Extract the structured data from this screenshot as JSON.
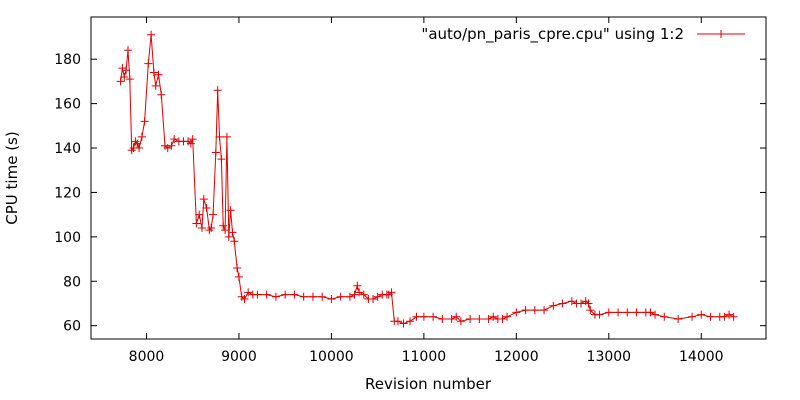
{
  "chart_data": {
    "type": "line",
    "xlabel": "Revision number",
    "ylabel": "CPU time (s)",
    "xlim": [
      7400,
      14700
    ],
    "ylim": [
      54,
      199
    ],
    "x_ticks": [
      8000,
      9000,
      10000,
      11000,
      12000,
      13000,
      14000
    ],
    "y_ticks": [
      60,
      80,
      100,
      120,
      140,
      160,
      180
    ],
    "grid": false,
    "legend_position": "top-right",
    "colors": {
      "series": "#e00000",
      "axis": "#000000"
    },
    "series": [
      {
        "name": "\"auto/pn_paris_cpre.cpu\" using 1:2",
        "marker": "plus",
        "x": [
          7720,
          7740,
          7760,
          7780,
          7800,
          7820,
          7840,
          7860,
          7880,
          7900,
          7920,
          7950,
          7980,
          8020,
          8050,
          8080,
          8100,
          8130,
          8160,
          8200,
          8230,
          8270,
          8300,
          8350,
          8400,
          8450,
          8480,
          8500,
          8540,
          8570,
          8600,
          8620,
          8650,
          8680,
          8700,
          8720,
          8750,
          8770,
          8790,
          8810,
          8830,
          8850,
          8870,
          8890,
          8910,
          8930,
          8950,
          8980,
          9000,
          9030,
          9060,
          9100,
          9150,
          9200,
          9300,
          9400,
          9500,
          9600,
          9700,
          9800,
          9900,
          10000,
          10100,
          10200,
          10250,
          10280,
          10300,
          10350,
          10400,
          10450,
          10500,
          10550,
          10600,
          10620,
          10650,
          10680,
          10720,
          10780,
          10850,
          10920,
          11000,
          11100,
          11200,
          11300,
          11350,
          11400,
          11500,
          11600,
          11700,
          11750,
          11800,
          11850,
          11900,
          12000,
          12100,
          12200,
          12300,
          12400,
          12500,
          12600,
          12650,
          12700,
          12750,
          12780,
          12800,
          12850,
          12900,
          13000,
          13100,
          13200,
          13300,
          13400,
          13450,
          13500,
          13600,
          13750,
          13900,
          14000,
          14100,
          14200,
          14250,
          14300,
          14350
        ],
        "y": [
          170,
          176,
          172,
          175,
          184,
          171,
          139,
          140,
          143,
          142,
          140,
          145,
          152,
          178,
          191,
          174,
          168,
          173,
          164,
          141,
          140,
          141,
          144,
          143,
          143,
          143,
          142,
          144,
          106,
          110,
          104,
          117,
          113,
          103,
          104,
          110,
          138,
          166,
          145,
          135,
          105,
          103,
          145,
          100,
          112,
          102,
          98,
          86,
          82,
          73,
          72,
          75,
          74,
          74,
          74,
          73,
          74,
          74,
          73,
          73,
          73,
          72,
          73,
          73,
          74,
          78,
          75,
          74,
          72,
          72,
          73,
          74,
          74,
          74,
          75,
          62,
          62,
          61,
          62,
          64,
          64,
          64,
          63,
          63,
          64,
          62,
          63,
          63,
          63,
          64,
          63,
          63,
          64,
          66,
          67,
          67,
          67,
          69,
          70,
          71,
          70,
          70,
          71,
          70,
          67,
          65,
          65,
          66,
          66,
          66,
          66,
          66,
          66,
          65,
          64,
          63,
          64,
          65,
          64,
          64,
          64,
          65,
          64
        ]
      }
    ]
  }
}
